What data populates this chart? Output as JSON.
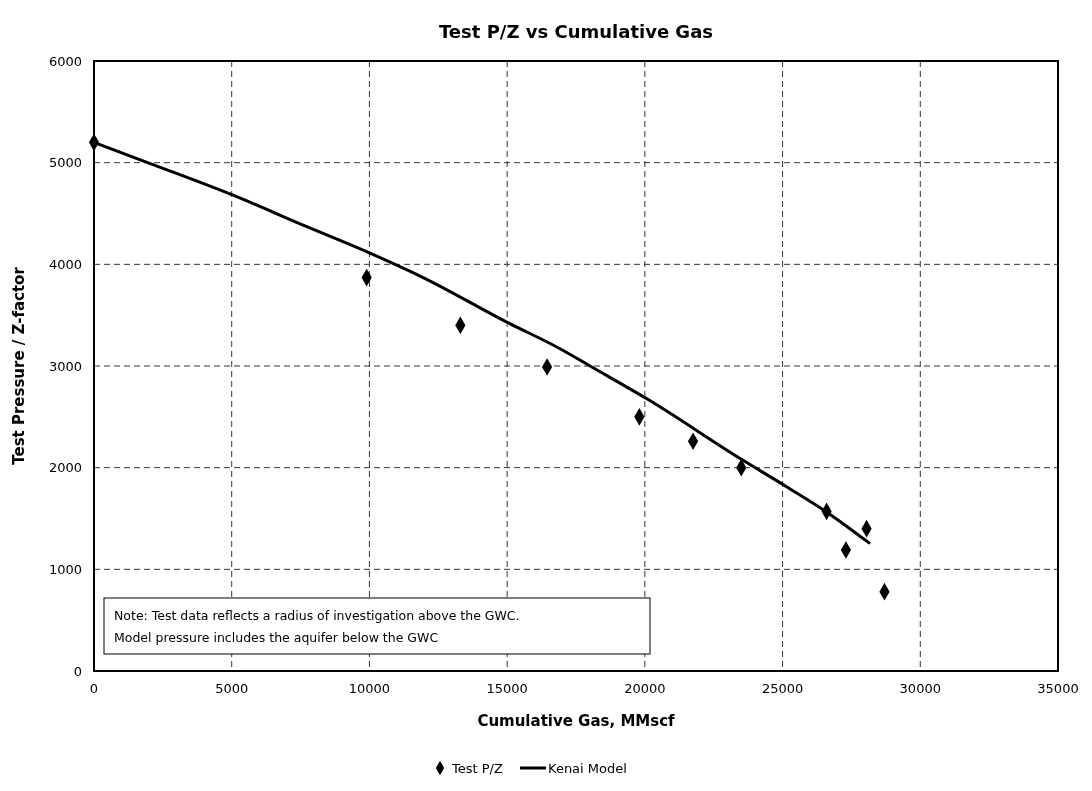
{
  "chart_data": {
    "type": "scatter",
    "title": "Test P/Z vs Cumulative Gas",
    "xlabel": "Cumulative Gas, MMscf",
    "ylabel": "Test Pressure / Z-factor",
    "xlim": [
      0,
      35000
    ],
    "xticks": [
      0,
      5000,
      10000,
      15000,
      20000,
      25000,
      30000,
      35000
    ],
    "ylim": [
      0,
      6000
    ],
    "yticks": [
      0,
      1000,
      2000,
      3000,
      4000,
      5000,
      6000
    ],
    "grid": true,
    "legend": "bottom",
    "annotations": [
      "Note: Test data reflects a radius of investigation above the GWC.\nModel pressure includes the aquifer below the GWC"
    ],
    "series": [
      {
        "name": "Test P/Z",
        "marker": "diamond",
        "color": "#000000",
        "x": [
          0,
          9900,
          13300,
          16450,
          19800,
          21750,
          23500,
          26600,
          27300,
          28050,
          28700
        ],
        "values": [
          5200,
          3870,
          3400,
          2990,
          2500,
          2260,
          2000,
          1570,
          1190,
          1400,
          780
        ]
      },
      {
        "name": "Kenai Model",
        "type": "line",
        "color": "#000000",
        "x": [
          0,
          1560,
          5050,
          7730,
          10020,
          11950,
          15000,
          16920,
          18010,
          20120,
          23460,
          25160,
          26620,
          28140
        ],
        "values": [
          5200,
          5040,
          4680,
          4370,
          4110,
          3870,
          3430,
          3170,
          3000,
          2670,
          2090,
          1810,
          1560,
          1260
        ]
      }
    ]
  }
}
